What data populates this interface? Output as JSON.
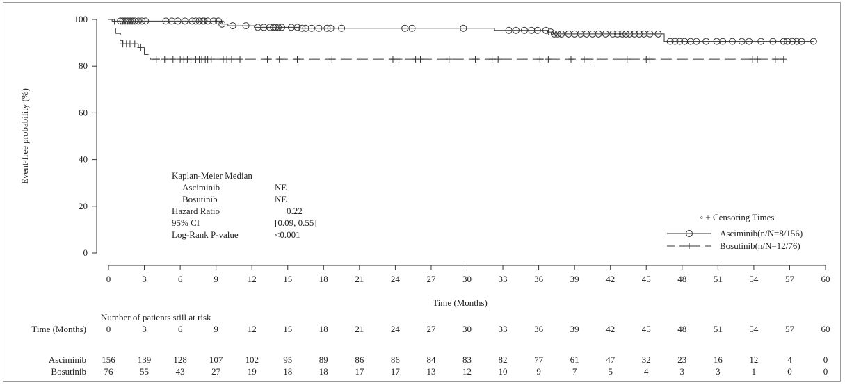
{
  "chart_data": {
    "type": "line",
    "subtype": "kaplan-meier",
    "ylabel": "Event-free probability (%)",
    "xlabel": "Time (Months)",
    "xlim": [
      0,
      60
    ],
    "ylim": [
      0,
      100
    ],
    "x_ticks": [
      "0",
      "3",
      "6",
      "9",
      "12",
      "15",
      "18",
      "21",
      "24",
      "27",
      "30",
      "33",
      "36",
      "39",
      "42",
      "45",
      "48",
      "51",
      "54",
      "57",
      "60"
    ],
    "y_ticks": [
      "0",
      "20",
      "40",
      "60",
      "80",
      "100"
    ],
    "series": [
      {
        "name": "Asciminib(n/N=8/156)",
        "style": "solid",
        "censor_marker": "circle",
        "steps": [
          [
            0,
            100
          ],
          [
            0.3,
            99.3
          ],
          [
            9.5,
            98
          ],
          [
            10,
            97.3
          ],
          [
            12.2,
            96.6
          ],
          [
            16,
            96.2
          ],
          [
            32.3,
            95.3
          ],
          [
            36.8,
            94.6
          ],
          [
            37.2,
            93.8
          ],
          [
            46.5,
            90.6
          ],
          [
            59,
            90.6
          ]
        ],
        "censored": [
          1,
          1.2,
          1.4,
          1.6,
          1.8,
          2,
          2.2,
          2.5,
          2.8,
          3.1,
          4.8,
          5.3,
          5.8,
          6.4,
          7,
          7.3,
          7.6,
          7.9,
          8,
          8.3,
          8.8,
          9.2,
          9.5,
          10.4,
          11.5,
          12.5,
          13,
          13.5,
          13.8,
          14,
          14.2,
          14.5,
          15.3,
          15.8,
          16.2,
          16.5,
          17,
          17.6,
          18.3,
          18.6,
          19.5,
          24.8,
          25.4,
          29.7,
          33.5,
          34.1,
          34.8,
          35.4,
          35.9,
          36.6,
          37,
          37.3,
          37.6,
          37.9,
          38.5,
          39,
          39.5,
          40,
          40.5,
          41,
          41.6,
          42.2,
          42.6,
          43,
          43.3,
          43.6,
          44,
          44.4,
          44.8,
          45.3,
          46,
          47,
          47.4,
          47.8,
          48.2,
          48.7,
          49.2,
          50,
          50.9,
          51.4,
          52.2,
          53,
          53.6,
          54.6,
          55.6,
          56.5,
          56.8,
          57.2,
          57.6,
          58,
          59
        ]
      },
      {
        "name": "Bosutinib(n/N=12/76)",
        "style": "dashed",
        "censor_marker": "plus",
        "steps": [
          [
            0,
            100
          ],
          [
            0.5,
            97
          ],
          [
            0.6,
            94
          ],
          [
            1,
            91
          ],
          [
            1.2,
            89.5
          ],
          [
            2.5,
            88
          ],
          [
            3,
            85
          ],
          [
            3.5,
            83
          ],
          [
            56.5,
            83
          ]
        ],
        "censored": [
          1.2,
          1.5,
          1.8,
          2.2,
          2.7,
          4,
          4.7,
          5.4,
          6,
          6.3,
          6.6,
          6.9,
          7.3,
          7.6,
          7.8,
          8.1,
          8.3,
          8.6,
          9.6,
          9.9,
          10.3,
          11,
          13.3,
          14.3,
          15.8,
          18.7,
          23.8,
          24.3,
          25.7,
          26.1,
          28.5,
          30.7,
          32.1,
          32.6,
          36.1,
          36.8,
          38.7,
          39.8,
          40.3,
          43.4,
          45,
          45.3,
          53.9,
          54.3,
          55.8,
          56.5
        ]
      }
    ],
    "legend": {
      "title": "◦ + Censoring Times",
      "placement": "bottom-right",
      "entries": [
        "Asciminib(n/N=8/156)",
        "Bosutinib(n/N=12/76)"
      ]
    },
    "annotation": {
      "heading": "Kaplan-Meier Median",
      "rows": [
        {
          "label": "Asciminib",
          "value": "NE"
        },
        {
          "label": "Bosutinib",
          "value": "NE"
        },
        {
          "label": "Hazard Ratio",
          "value": "0.22"
        },
        {
          "label": "95% CI",
          "value": "[0.09, 0.55]"
        },
        {
          "label": "Log-Rank P-value",
          "value": "<0.001"
        }
      ]
    },
    "risk_table": {
      "title": "Number of patients still at risk",
      "time_label": "Time (Months)",
      "times": [
        "0",
        "3",
        "6",
        "9",
        "12",
        "15",
        "18",
        "21",
        "24",
        "27",
        "30",
        "33",
        "36",
        "39",
        "42",
        "45",
        "48",
        "51",
        "54",
        "57",
        "60"
      ],
      "rows": [
        {
          "label": "Asciminib",
          "values": [
            "156",
            "139",
            "128",
            "107",
            "102",
            "95",
            "89",
            "86",
            "86",
            "84",
            "83",
            "82",
            "77",
            "61",
            "47",
            "32",
            "23",
            "16",
            "12",
            "4",
            "0"
          ]
        },
        {
          "label": "Bosutinib",
          "values": [
            "76",
            "55",
            "43",
            "27",
            "19",
            "18",
            "18",
            "17",
            "17",
            "13",
            "12",
            "10",
            "9",
            "7",
            "5",
            "4",
            "3",
            "3",
            "1",
            "0",
            "0"
          ]
        }
      ]
    }
  }
}
